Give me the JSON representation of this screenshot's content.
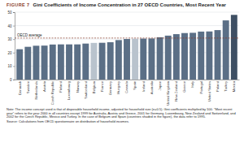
{
  "chart_data": {
    "type": "bar",
    "figure_label": "FIGURE 7",
    "title": "Gini Coefficients of Income Concentration in 27 OECD Countries, Most Recent Year",
    "categories": [
      "Denmark",
      "Sweden",
      "Netherlands",
      "Austria",
      "Czech Republic",
      "Finland",
      "Luxembourg",
      "Norway",
      "Switzerland",
      "Belgium",
      "France",
      "Germany",
      "Hungary",
      "Canada",
      "Spain",
      "Ireland",
      "Australia",
      "Japan",
      "United Kingdom",
      "New Zealand",
      "Greece",
      "Italy",
      "Portugal",
      "United States",
      "Poland",
      "Turkey",
      "Mexico"
    ],
    "values": [
      22.5,
      24.3,
      25.1,
      25.2,
      26.0,
      26.1,
      26.1,
      26.1,
      26.7,
      27.2,
      27.3,
      27.7,
      29.3,
      30.1,
      30.3,
      30.4,
      30.5,
      31.4,
      32.6,
      33.7,
      34.5,
      34.7,
      35.6,
      35.7,
      36.7,
      43.9,
      48.0
    ],
    "colors": [
      "#5b6f86",
      "#5b6f86",
      "#5b6f86",
      "#5b6f86",
      "#5b6f86",
      "#5b6f86",
      "#5b6f86",
      "#5b6f86",
      "#5b6f86",
      "#b9c3cd",
      "#5b6f86",
      "#5b6f86",
      "#5b6f86",
      "#5b6f86",
      "#b9c3cd",
      "#5b6f86",
      "#5b6f86",
      "#5b6f86",
      "#5b6f86",
      "#5b6f86",
      "#5b6f86",
      "#5b6f86",
      "#5b6f86",
      "#5b6f86",
      "#5b6f86",
      "#5b6f86",
      "#3e4f63"
    ],
    "ylim": [
      0,
      50
    ],
    "yticks": [
      0,
      10,
      20,
      30,
      40,
      50
    ],
    "grid": true,
    "reference_line": {
      "label": "OECD average",
      "value": 30.8
    },
    "note": "Note: The income concept used is that of disposable household income, adjusted for household size (e=0.5). Gini coefficients multiplied by 100. \"Most recent year\" refers to the year 2000 in all countries except 1999 for Australia, Austria and Greece, 2001 for Germany, Luxembourg, New Zealand and Switzerland, and 2002 for the Czech Republic, Mexico and Turkey. In the case of Belgium and Spain (countries shaded in the figure), the data refer to 1995.",
    "source": "Source: Calculations from OECD questionnaire on distribution of household incomes."
  }
}
